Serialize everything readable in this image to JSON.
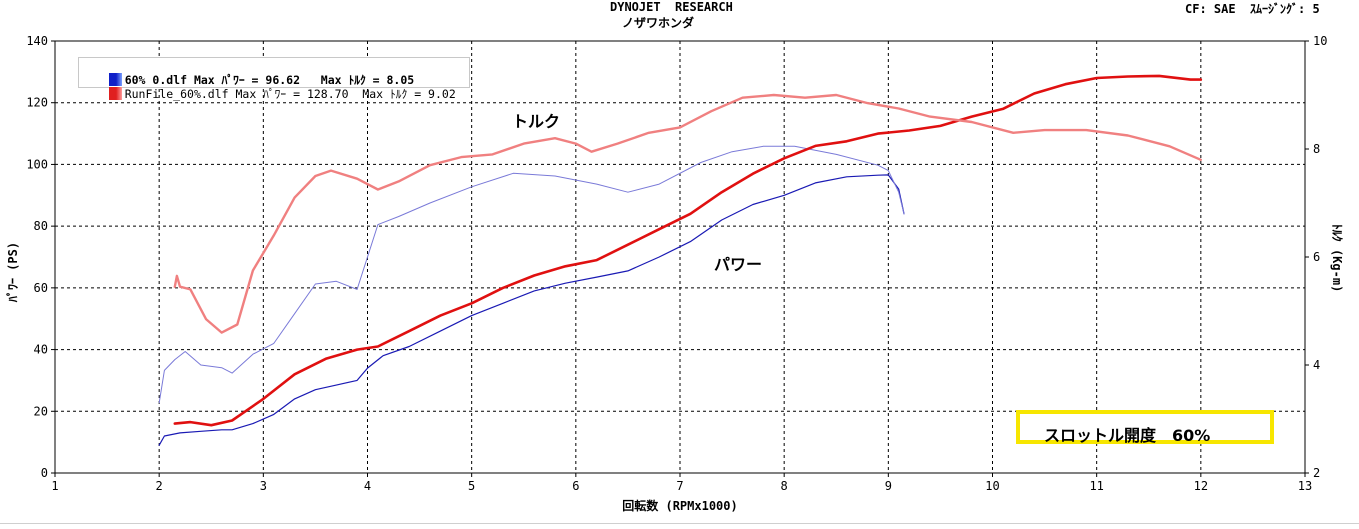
{
  "header": {
    "line1": "DYNOJET  RESEARCH",
    "line2": "ノザワホンダ",
    "right": "CF: SAE  ｽﾑｰｼﾞﾝｸﾞ: 5"
  },
  "legend": [
    {
      "label": "60% 0.dlf Max ﾊﾟﾜｰ = 96.62   Max ﾄﾙｸ = 8.05",
      "color": "#1020c8"
    },
    {
      "label": "RunFile_60%.dlf Max ﾊﾟﾜｰ = 128.70  Max ﾄﾙｸ = 9.02",
      "color": "#e02020"
    }
  ],
  "annotations": {
    "torque": "トルク",
    "power": "パワー",
    "throttle": "スロットル開度　60%"
  },
  "colors": {
    "power_old": "#1a1ab4",
    "torque_old": "#7a7ad8",
    "power_new": "#e01010",
    "torque_new": "#f08080",
    "highlight_box": "#f7e600"
  },
  "chart_data": {
    "type": "line",
    "xlabel": "回転数 (RPMx1000)",
    "ylabel": "ﾊﾟﾜｰ (PS)",
    "y2label": "ﾄﾙｸ (Kg-m)",
    "xlim": [
      1,
      13
    ],
    "ylim": [
      0,
      140
    ],
    "y2lim": [
      2,
      10
    ],
    "x_ticks": [
      "1",
      "2",
      "3",
      "4",
      "5",
      "6",
      "7",
      "8",
      "9",
      "10",
      "11",
      "12",
      "13"
    ],
    "y_ticks": [
      "0",
      "20",
      "40",
      "60",
      "80",
      "100",
      "120",
      "140"
    ],
    "y2_ticks": [
      "2",
      "4",
      "6",
      "8",
      "10"
    ],
    "grid": true,
    "series": [
      {
        "name": "60% 0.dlf",
        "quantity": "power",
        "axis": "left",
        "x": [
          2.0,
          2.05,
          2.2,
          2.4,
          2.6,
          2.7,
          2.9,
          3.1,
          3.3,
          3.5,
          3.7,
          3.9,
          4.0,
          4.15,
          4.4,
          4.7,
          5.0,
          5.3,
          5.6,
          5.9,
          6.2,
          6.5,
          6.8,
          7.1,
          7.4,
          7.7,
          8.0,
          8.3,
          8.6,
          8.9,
          9.0,
          9.1,
          9.15
        ],
        "y": [
          9,
          12,
          13,
          13.5,
          14,
          14,
          16,
          19,
          24,
          27,
          28.5,
          30,
          34,
          38,
          41,
          46,
          51,
          55,
          59,
          61.5,
          63.5,
          65.5,
          70,
          75,
          82,
          87,
          90,
          94,
          96,
          96.5,
          96.6,
          92,
          84
        ]
      },
      {
        "name": "60% 0.dlf",
        "quantity": "torque",
        "axis": "right",
        "x": [
          2.0,
          2.05,
          2.15,
          2.25,
          2.4,
          2.6,
          2.7,
          2.9,
          3.1,
          3.3,
          3.5,
          3.7,
          3.9,
          4.0,
          4.1,
          4.3,
          4.6,
          5.0,
          5.4,
          5.8,
          6.2,
          6.5,
          6.8,
          7.2,
          7.5,
          7.8,
          8.1,
          8.5,
          8.9,
          9.0,
          9.1,
          9.15
        ],
        "y": [
          3.3,
          3.9,
          4.1,
          4.25,
          4.0,
          3.95,
          3.85,
          4.2,
          4.4,
          4.95,
          5.5,
          5.55,
          5.4,
          6.0,
          6.6,
          6.75,
          7.0,
          7.3,
          7.55,
          7.5,
          7.35,
          7.2,
          7.35,
          7.75,
          7.95,
          8.05,
          8.05,
          7.9,
          7.7,
          7.6,
          7.2,
          6.8
        ]
      },
      {
        "name": "RunFile_60%.dlf",
        "quantity": "power",
        "axis": "left",
        "x": [
          2.15,
          2.3,
          2.5,
          2.7,
          3.0,
          3.3,
          3.6,
          3.9,
          4.1,
          4.4,
          4.7,
          5.0,
          5.3,
          5.6,
          5.9,
          6.2,
          6.5,
          6.8,
          7.1,
          7.4,
          7.7,
          8.0,
          8.3,
          8.6,
          8.9,
          9.2,
          9.5,
          9.8,
          10.1,
          10.4,
          10.7,
          11.0,
          11.3,
          11.6,
          11.9,
          12.0
        ],
        "y": [
          16,
          16.5,
          15.5,
          17,
          24,
          32,
          37,
          40,
          41,
          46,
          51,
          55,
          60,
          64,
          67,
          69,
          74,
          79,
          84,
          91,
          97,
          102,
          106,
          107.5,
          110,
          111,
          112.5,
          115.5,
          118,
          123,
          126,
          128,
          128.5,
          128.7,
          127.5,
          127.5
        ]
      },
      {
        "name": "RunFile_60%.dlf",
        "quantity": "torque",
        "axis": "right",
        "x": [
          2.15,
          2.17,
          2.2,
          2.3,
          2.45,
          2.6,
          2.75,
          2.9,
          3.1,
          3.3,
          3.5,
          3.65,
          3.9,
          4.1,
          4.3,
          4.6,
          4.9,
          5.2,
          5.5,
          5.8,
          6.0,
          6.15,
          6.4,
          6.7,
          7.0,
          7.3,
          7.6,
          7.9,
          8.2,
          8.5,
          8.8,
          9.1,
          9.4,
          9.8,
          10.2,
          10.5,
          10.9,
          11.3,
          11.7,
          12.0
        ],
        "y": [
          5.45,
          5.65,
          5.45,
          5.4,
          4.85,
          4.6,
          4.75,
          5.75,
          6.4,
          7.1,
          7.5,
          7.6,
          7.45,
          7.25,
          7.4,
          7.7,
          7.85,
          7.9,
          8.1,
          8.2,
          8.1,
          7.95,
          8.1,
          8.3,
          8.4,
          8.7,
          8.95,
          9.0,
          8.95,
          9.0,
          8.85,
          8.75,
          8.6,
          8.5,
          8.3,
          8.35,
          8.35,
          8.25,
          8.05,
          7.8
        ]
      }
    ]
  }
}
